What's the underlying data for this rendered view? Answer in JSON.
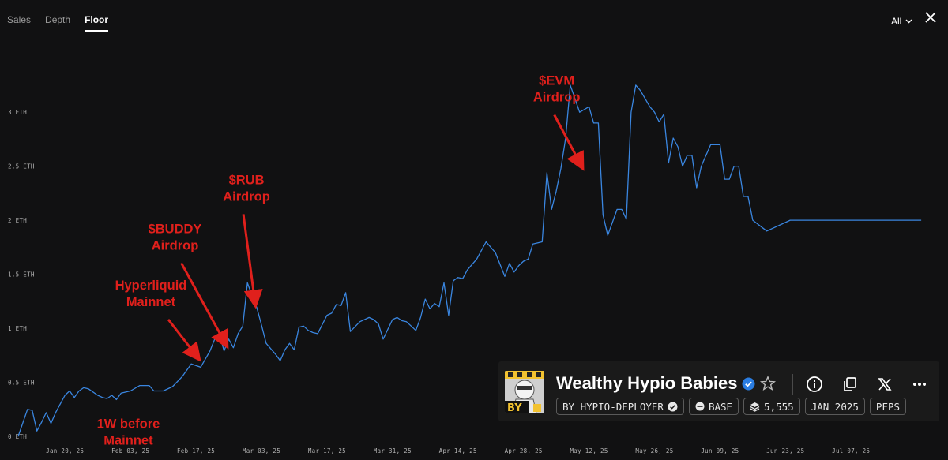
{
  "tabs": [
    {
      "label": "Sales",
      "active": false
    },
    {
      "label": "Depth",
      "active": false
    },
    {
      "label": "Floor",
      "active": true
    }
  ],
  "range": {
    "label": "All"
  },
  "chart_data": {
    "type": "line",
    "title": "",
    "xlabel": "",
    "ylabel": "",
    "ylim": [
      0,
      3.6
    ],
    "xlim": [
      "2025-01-10",
      "2025-07-23"
    ],
    "line_color": "#3a86e0",
    "annotation_color": "#e0201c",
    "grid": false,
    "x_ticks": [
      "Jan 20, 25",
      "Feb 03, 25",
      "Feb 17, 25",
      "Mar 03, 25",
      "Mar 17, 25",
      "Mar 31, 25",
      "Apr 14, 25",
      "Apr 28, 25",
      "May 12, 25",
      "May 26, 25",
      "Jun 09, 25",
      "Jun 23, 25",
      "Jul 07, 25"
    ],
    "y_ticks": [
      {
        "value": 0,
        "label": "0 ETH"
      },
      {
        "value": 0.5,
        "label": "0.5 ETH"
      },
      {
        "value": 1,
        "label": "1 ETH"
      },
      {
        "value": 1.5,
        "label": "1.5 ETH"
      },
      {
        "value": 2,
        "label": "2 ETH"
      },
      {
        "value": 2.5,
        "label": "2.5 ETH"
      },
      {
        "value": 3,
        "label": "3 ETH"
      }
    ],
    "series": [
      {
        "name": "",
        "x": [
          "2025-01-10",
          "2025-01-12",
          "2025-01-13",
          "2025-01-14",
          "2025-01-15",
          "2025-01-16",
          "2025-01-17",
          "2025-01-18",
          "2025-01-19",
          "2025-01-20",
          "2025-01-21",
          "2025-01-22",
          "2025-01-23",
          "2025-01-24",
          "2025-01-25",
          "2025-01-27",
          "2025-01-28",
          "2025-01-29",
          "2025-01-30",
          "2025-01-31",
          "2025-02-01",
          "2025-02-03",
          "2025-02-05",
          "2025-02-07",
          "2025-02-08",
          "2025-02-10",
          "2025-02-12",
          "2025-02-14",
          "2025-02-16",
          "2025-02-18",
          "2025-02-20",
          "2025-02-21",
          "2025-02-22",
          "2025-02-23",
          "2025-02-24",
          "2025-02-25",
          "2025-02-26",
          "2025-02-27",
          "2025-02-28",
          "2025-03-01",
          "2025-03-02",
          "2025-03-03",
          "2025-03-04",
          "2025-03-06",
          "2025-03-07",
          "2025-03-08",
          "2025-03-09",
          "2025-03-10",
          "2025-03-11",
          "2025-03-12",
          "2025-03-13",
          "2025-03-14",
          "2025-03-15",
          "2025-03-17",
          "2025-03-18",
          "2025-03-19",
          "2025-03-20",
          "2025-03-21",
          "2025-03-22",
          "2025-03-24",
          "2025-03-26",
          "2025-03-27",
          "2025-03-28",
          "2025-03-29",
          "2025-03-31",
          "2025-04-01",
          "2025-04-02",
          "2025-04-03",
          "2025-04-05",
          "2025-04-06",
          "2025-04-07",
          "2025-04-08",
          "2025-04-09",
          "2025-04-10",
          "2025-04-11",
          "2025-04-12",
          "2025-04-13",
          "2025-04-14",
          "2025-04-15",
          "2025-04-16",
          "2025-04-18",
          "2025-04-20",
          "2025-04-22",
          "2025-04-24",
          "2025-04-25",
          "2025-04-26",
          "2025-04-27",
          "2025-04-28",
          "2025-04-29",
          "2025-04-30",
          "2025-05-02",
          "2025-05-03",
          "2025-05-04",
          "2025-05-05",
          "2025-05-06",
          "2025-05-07",
          "2025-05-08",
          "2025-05-10",
          "2025-05-12",
          "2025-05-13",
          "2025-05-14",
          "2025-05-15",
          "2025-05-16",
          "2025-05-18",
          "2025-05-19",
          "2025-05-20",
          "2025-05-21",
          "2025-05-22",
          "2025-05-23",
          "2025-05-25",
          "2025-05-26",
          "2025-05-27",
          "2025-05-28",
          "2025-05-29",
          "2025-05-30",
          "2025-05-31",
          "2025-06-01",
          "2025-06-02",
          "2025-06-03",
          "2025-06-04",
          "2025-06-05",
          "2025-06-07",
          "2025-06-09",
          "2025-06-10",
          "2025-06-11",
          "2025-06-12",
          "2025-06-13",
          "2025-06-14",
          "2025-06-15",
          "2025-06-16",
          "2025-06-19",
          "2025-06-24",
          "2025-06-25",
          "2025-07-02",
          "2025-07-22"
        ],
        "y": [
          0.0,
          0.25,
          0.24,
          0.05,
          0.13,
          0.22,
          0.12,
          0.22,
          0.3,
          0.38,
          0.42,
          0.36,
          0.42,
          0.45,
          0.44,
          0.38,
          0.36,
          0.35,
          0.38,
          0.34,
          0.4,
          0.42,
          0.47,
          0.47,
          0.42,
          0.42,
          0.46,
          0.55,
          0.67,
          0.64,
          0.79,
          0.9,
          0.95,
          0.79,
          0.9,
          0.82,
          0.95,
          1.02,
          1.42,
          1.3,
          1.19,
          1.03,
          0.86,
          0.76,
          0.7,
          0.8,
          0.86,
          0.8,
          1.01,
          1.02,
          0.98,
          0.96,
          0.95,
          1.12,
          1.14,
          1.22,
          1.21,
          1.33,
          0.97,
          1.06,
          1.1,
          1.08,
          1.04,
          0.9,
          1.08,
          1.1,
          1.07,
          1.06,
          0.98,
          1.1,
          1.27,
          1.18,
          1.23,
          1.2,
          1.42,
          1.12,
          1.44,
          1.47,
          1.46,
          1.54,
          1.64,
          1.8,
          1.7,
          1.48,
          1.6,
          1.52,
          1.58,
          1.62,
          1.64,
          1.78,
          1.8,
          2.44,
          2.1,
          2.27,
          2.48,
          2.76,
          3.25,
          3.0,
          3.05,
          2.9,
          2.9,
          2.05,
          1.86,
          2.1,
          2.1,
          2.01,
          3.0,
          3.25,
          3.2,
          3.05,
          3.0,
          2.91,
          2.98,
          2.53,
          2.76,
          2.68,
          2.5,
          2.6,
          2.6,
          2.3,
          2.5,
          2.7,
          2.7,
          2.38,
          2.38,
          2.5,
          2.5,
          2.22,
          2.22,
          2.0,
          1.9,
          2.0,
          2.0,
          2.0,
          2.0
        ]
      }
    ],
    "annotations": [
      {
        "lines": [
          "1W before",
          "Mainnet"
        ],
        "x": "2025-02-12",
        "y": 0.5
      },
      {
        "lines": [
          "Hyperliquid",
          "Mainnet"
        ],
        "x": "2025-02-18",
        "y": 0.68
      },
      {
        "lines": [
          "$BUDDY",
          "Airdrop"
        ],
        "x": "2025-02-24",
        "y": 0.8
      },
      {
        "lines": [
          "$RUB",
          "Airdrop"
        ],
        "x": "2025-03-02",
        "y": 1.18
      },
      {
        "lines": [
          "$EVM",
          "Airdrop"
        ],
        "x": "2025-05-11",
        "y": 2.45
      }
    ]
  },
  "collection": {
    "name": "Wealthy Hypio Babies",
    "thumb_text": "BY",
    "tags": [
      {
        "label": "BY HYPIO-DEPLOYER",
        "icon": "verified-icon"
      },
      {
        "label": "BASE",
        "icon": "base-chain-icon"
      },
      {
        "label": "5,555",
        "icon": "layers-icon"
      },
      {
        "label": "JAN 2025",
        "icon": ""
      },
      {
        "label": "PFPS",
        "icon": ""
      }
    ],
    "actions": [
      "info-icon",
      "copy-icon",
      "x-logo-icon",
      "more-icon"
    ]
  }
}
